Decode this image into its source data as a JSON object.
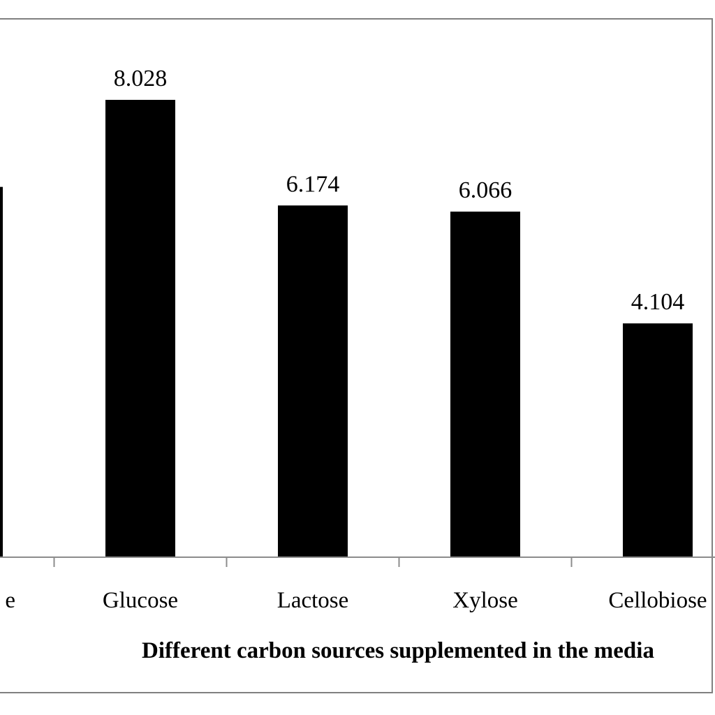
{
  "chart_data": {
    "type": "bar",
    "categories": [
      "Sucrose",
      "Glucose",
      "Lactose",
      "Xylose",
      "Cellobiose"
    ],
    "values": [
      6.5,
      8.028,
      6.174,
      6.066,
      4.104
    ],
    "value_labels": [
      "",
      "8.028",
      "6.174",
      "6.066",
      "4.104"
    ],
    "tick_labels": [
      "e",
      "Glucose",
      "Lactose",
      "Xylose",
      "Cellobiose"
    ],
    "xlabel": "Different carbon sources supplemented in the media",
    "ylabel": "",
    "title": "",
    "ylim": [
      0,
      8.028
    ],
    "bar_color": "#000000",
    "grid": false,
    "legend": "none"
  }
}
